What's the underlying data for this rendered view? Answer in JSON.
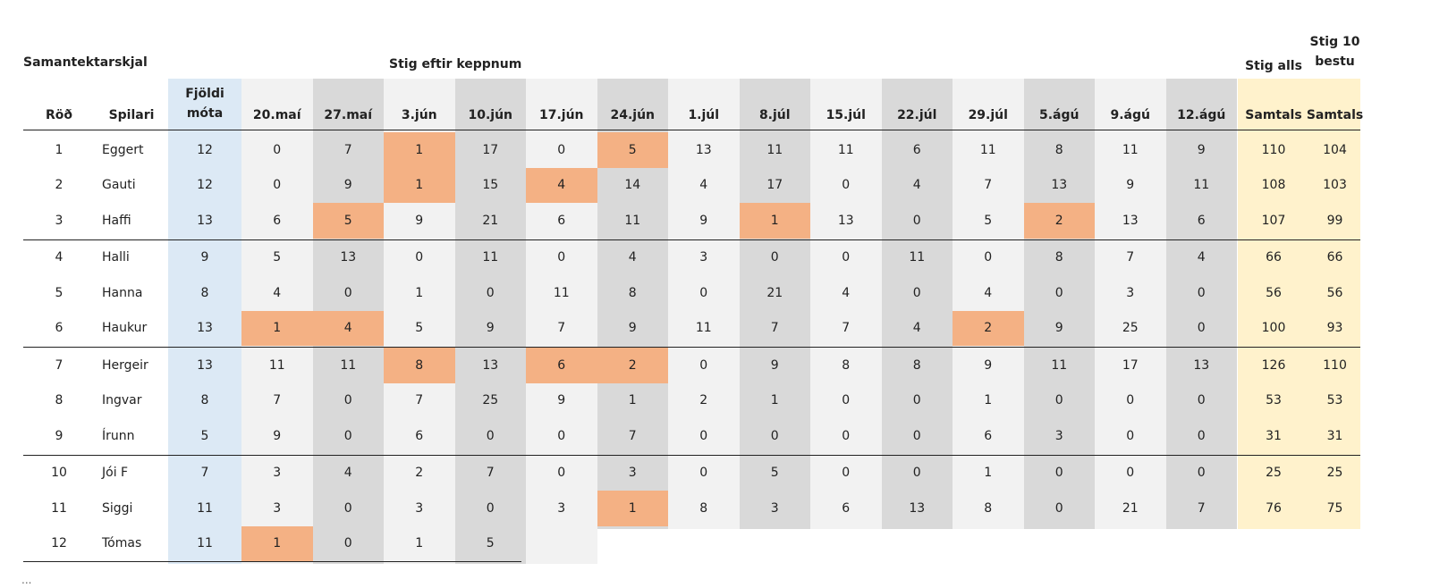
{
  "sheet": {
    "title": "Samantektarskjal",
    "group_header": "Stig eftir keppnum",
    "total_header": "Stig alls",
    "best_header_line1": "Stig 10",
    "best_header_line2": "bestu",
    "count_header_line1": "Fjöldi",
    "count_header_line2": "móta",
    "rank_header": "Röð",
    "player_header": "Spilari",
    "total_sub": "Samtals",
    "best_sub": "Samtals",
    "ellipsis": "..."
  },
  "colors": {
    "count_col": "#dce9f5",
    "light_col": "#f2f2f2",
    "dark_col": "#d9d9d9",
    "totals_col": "#fff2cc",
    "highlight": "#f4b184"
  },
  "dates": [
    "20.maí",
    "27.maí",
    "3.jún",
    "10.jún",
    "17.jún",
    "24.jún",
    "1.júl",
    "8.júl",
    "15.júl",
    "22.júl",
    "29.júl",
    "5.ágú",
    "9.ágú",
    "12.ágú"
  ],
  "rows": [
    {
      "rank": "1",
      "name": "Eggert",
      "count": "12",
      "scores": [
        "0",
        "7",
        "1",
        "17",
        "0",
        "5",
        "13",
        "11",
        "11",
        "6",
        "11",
        "8",
        "11",
        "9"
      ],
      "hl": [
        2,
        5
      ],
      "total": "110",
      "best": "104"
    },
    {
      "rank": "2",
      "name": "Gauti",
      "count": "12",
      "scores": [
        "0",
        "9",
        "1",
        "15",
        "4",
        "14",
        "4",
        "17",
        "0",
        "4",
        "7",
        "13",
        "9",
        "11"
      ],
      "hl": [
        2,
        4
      ],
      "total": "108",
      "best": "103"
    },
    {
      "rank": "3",
      "name": "Haffi",
      "count": "13",
      "scores": [
        "6",
        "5",
        "9",
        "21",
        "6",
        "11",
        "9",
        "1",
        "13",
        "0",
        "5",
        "2",
        "13",
        "6"
      ],
      "hl": [
        1,
        7,
        11
      ],
      "total": "107",
      "best": "99"
    },
    {
      "rank": "4",
      "name": "Halli",
      "count": "9",
      "scores": [
        "5",
        "13",
        "0",
        "11",
        "0",
        "4",
        "3",
        "0",
        "0",
        "11",
        "0",
        "8",
        "7",
        "4"
      ],
      "hl": [],
      "total": "66",
      "best": "66"
    },
    {
      "rank": "5",
      "name": "Hanna",
      "count": "8",
      "scores": [
        "4",
        "0",
        "1",
        "0",
        "11",
        "8",
        "0",
        "21",
        "4",
        "0",
        "4",
        "0",
        "3",
        "0"
      ],
      "hl": [],
      "total": "56",
      "best": "56"
    },
    {
      "rank": "6",
      "name": "Haukur",
      "count": "13",
      "scores": [
        "1",
        "4",
        "5",
        "9",
        "7",
        "9",
        "11",
        "7",
        "7",
        "4",
        "2",
        "9",
        "25",
        "0"
      ],
      "hl": [
        0,
        1,
        10
      ],
      "total": "100",
      "best": "93"
    },
    {
      "rank": "7",
      "name": "Hergeir",
      "count": "13",
      "scores": [
        "11",
        "11",
        "8",
        "13",
        "6",
        "2",
        "0",
        "9",
        "8",
        "8",
        "9",
        "11",
        "17",
        "13"
      ],
      "hl": [
        2,
        4,
        5
      ],
      "total": "126",
      "best": "110"
    },
    {
      "rank": "8",
      "name": "Ingvar",
      "count": "8",
      "scores": [
        "7",
        "0",
        "7",
        "25",
        "9",
        "1",
        "2",
        "1",
        "0",
        "0",
        "1",
        "0",
        "0",
        "0"
      ],
      "hl": [],
      "total": "53",
      "best": "53"
    },
    {
      "rank": "9",
      "name": "Írunn",
      "count": "5",
      "scores": [
        "9",
        "0",
        "6",
        "0",
        "0",
        "7",
        "0",
        "0",
        "0",
        "0",
        "6",
        "3",
        "0",
        "0"
      ],
      "hl": [],
      "total": "31",
      "best": "31"
    },
    {
      "rank": "10",
      "name": "Jói F",
      "count": "7",
      "scores": [
        "3",
        "4",
        "2",
        "7",
        "0",
        "3",
        "0",
        "5",
        "0",
        "0",
        "1",
        "0",
        "0",
        "0"
      ],
      "hl": [],
      "total": "25",
      "best": "25"
    },
    {
      "rank": "11",
      "name": "Siggi",
      "count": "11",
      "scores": [
        "3",
        "0",
        "3",
        "0",
        "3",
        "1",
        "8",
        "3",
        "6",
        "13",
        "8",
        "0",
        "21",
        "7"
      ],
      "hl": [
        5
      ],
      "total": "76",
      "best": "75"
    },
    {
      "rank": "12",
      "name": "Tómas",
      "count": "11",
      "scores": [
        "1",
        "0",
        "1",
        "5"
      ],
      "hl": [
        0
      ],
      "total": "",
      "best": ""
    }
  ]
}
